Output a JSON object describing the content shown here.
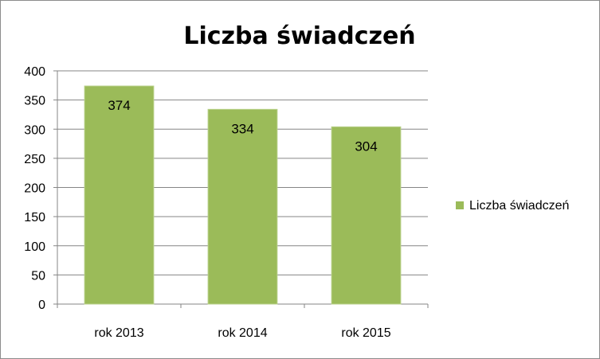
{
  "chart_data": {
    "type": "bar",
    "title": "Liczba świadczeń",
    "categories": [
      "rok 2013",
      "rok 2014",
      "rok 2015"
    ],
    "series": [
      {
        "name": "Liczba świadczeń",
        "values": [
          374,
          334,
          304
        ]
      }
    ],
    "ylim": [
      0,
      400
    ],
    "yticks": [
      0,
      50,
      100,
      150,
      200,
      250,
      300,
      350,
      400
    ],
    "grid": true,
    "legend": "right",
    "bar_color": "#9bbb59",
    "data_labels": true
  }
}
